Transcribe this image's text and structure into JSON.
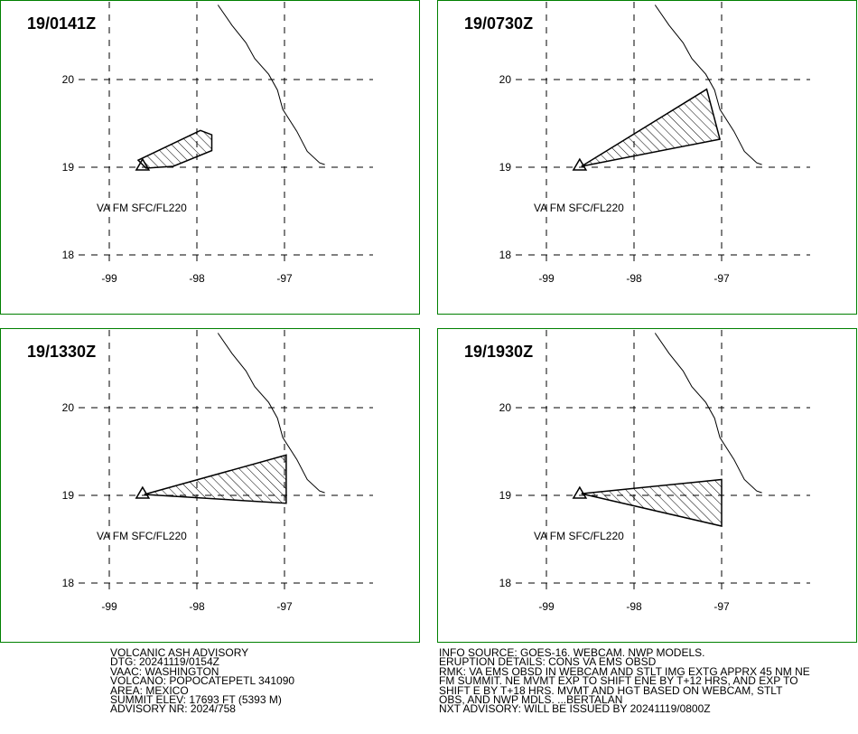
{
  "panels": [
    {
      "title": "19/0141Z",
      "va_label": "VA FM SFC/FL220",
      "ash_polygon": [
        [
          -98.67,
          19.08
        ],
        [
          -97.96,
          19.42
        ],
        [
          -97.83,
          19.37
        ],
        [
          -97.83,
          19.19
        ],
        [
          -98.27,
          19.01
        ],
        [
          -98.58,
          18.99
        ]
      ]
    },
    {
      "title": "19/0730Z",
      "va_label": "VA FM SFC/FL220",
      "ash_polygon": [
        [
          -98.6,
          19.01
        ],
        [
          -97.17,
          19.89
        ],
        [
          -97.02,
          19.32
        ]
      ]
    },
    {
      "title": "19/1330Z",
      "va_label": "VA FM SFC/FL220",
      "ash_polygon": [
        [
          -98.6,
          19.01
        ],
        [
          -96.98,
          19.46
        ],
        [
          -96.98,
          18.91
        ]
      ]
    },
    {
      "title": "19/1930Z",
      "va_label": "VA FM SFC/FL220",
      "ash_polygon": [
        [
          -98.6,
          19.02
        ],
        [
          -97.0,
          19.18
        ],
        [
          -97.0,
          18.65
        ]
      ]
    }
  ],
  "map": {
    "lon_ticks": [
      "-99",
      "-98",
      "-97"
    ],
    "lat_ticks": [
      "20",
      "19",
      "18"
    ],
    "lon_values": [
      -99,
      -98,
      -97
    ],
    "lat_values": [
      20,
      19,
      18
    ],
    "volcano": [
      -98.62,
      19.02
    ],
    "coastline": [
      [
        -97.76,
        20.85
      ],
      [
        -97.6,
        20.62
      ],
      [
        -97.44,
        20.42
      ],
      [
        -97.34,
        20.24
      ],
      [
        -97.18,
        20.06
      ],
      [
        -97.08,
        19.88
      ],
      [
        -97.02,
        19.66
      ],
      [
        -96.86,
        19.41
      ],
      [
        -96.74,
        19.18
      ],
      [
        -96.6,
        19.05
      ],
      [
        -96.54,
        19.03
      ]
    ]
  },
  "advisory_left": [
    "VOLCANIC ASH ADVISORY",
    "DTG: 20241119/0154Z",
    "VAAC: WASHINGTON",
    "VOLCANO: POPOCATEPETL 341090",
    "AREA: MEXICO",
    "SUMMIT ELEV: 17693 FT (5393 M)",
    "ADVISORY NR: 2024/758"
  ],
  "advisory_right": [
    "INFO SOURCE: GOES-16. WEBCAM. NWP MODELS.",
    "ERUPTION DETAILS: CONS VA EMS OBSD",
    "RMK: VA EMS OBSD IN WEBCAM AND STLT IMG EXTG APPRX 45 NM NE",
    "FM SUMMIT. NE MVMT EXP TO SHIFT ENE BY T+12 HRS, AND EXP TO",
    "SHIFT E BY T+18 HRS. MVMT AND HGT BASED ON WEBCAM, STLT",
    "OBS, AND NWP MDLS. ...BERTALAN",
    "NXT ADVISORY: WILL BE ISSUED BY 20241119/0800Z"
  ],
  "colors": {
    "panel_border": "#008000",
    "line": "#000000"
  }
}
